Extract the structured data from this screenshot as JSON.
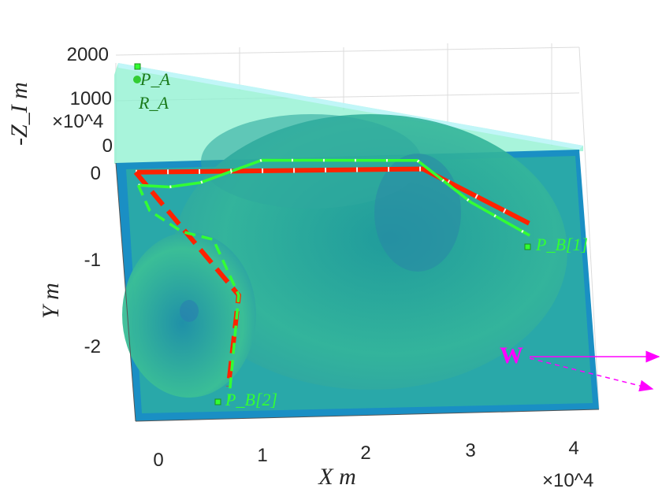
{
  "chart_data": {
    "type": "line",
    "title": "",
    "xlabel": "X m",
    "ylabel": "Y m",
    "zlabel": "-Z_I m",
    "x_exponent": "×10^4",
    "y_exponent": "×10^4",
    "xlim": [
      -0.4,
      4.3
    ],
    "ylim": [
      -2.9,
      0.05
    ],
    "zlim": [
      0,
      2000
    ],
    "x_ticks": [
      "0",
      "1",
      "2",
      "3",
      "4"
    ],
    "y_ticks": [
      "0",
      "-1",
      "-2"
    ],
    "z_ticks": [
      "0",
      "1000",
      "2000"
    ],
    "grid": true,
    "series": [
      {
        "name": "",
        "color": "#ff2200",
        "style": "solid",
        "x": [
          -0.22,
          2.55,
          3.55
        ],
        "y": [
          0.0,
          -0.05,
          -0.71
        ]
      },
      {
        "name": "",
        "color": "#ff2200",
        "style": "dashed",
        "x": [
          -0.22,
          0.72,
          0.58
        ],
        "y": [
          0.0,
          -1.45,
          -2.5
        ]
      },
      {
        "name": "",
        "color": "#33ff33",
        "style": "solid",
        "x": [
          -0.2,
          0.1,
          0.4,
          1.0,
          2.5,
          3.0,
          3.55
        ],
        "y": [
          -0.15,
          -0.18,
          -0.14,
          0.1,
          0.05,
          -0.45,
          -0.85
        ]
      },
      {
        "name": "",
        "color": "#33ff33",
        "style": "dashed",
        "x": [
          -0.2,
          -0.1,
          0.2,
          0.5,
          0.72,
          0.58
        ],
        "y": [
          -0.15,
          -0.45,
          -0.7,
          -0.8,
          -1.45,
          -2.65
        ]
      }
    ],
    "annotations": [
      {
        "text": "P_A"
      },
      {
        "text": "R_A"
      },
      {
        "text": "P_B[1]"
      },
      {
        "text": "P_B[2]"
      },
      {
        "text": "W"
      }
    ]
  },
  "colors": {
    "sea": "#1a8fc4",
    "sea_inner": "#2fb0a0",
    "upper_plane": "#7de8c8",
    "path_red": "#ff2200",
    "path_green": "#33ff33",
    "wind": "#ff00ff"
  }
}
